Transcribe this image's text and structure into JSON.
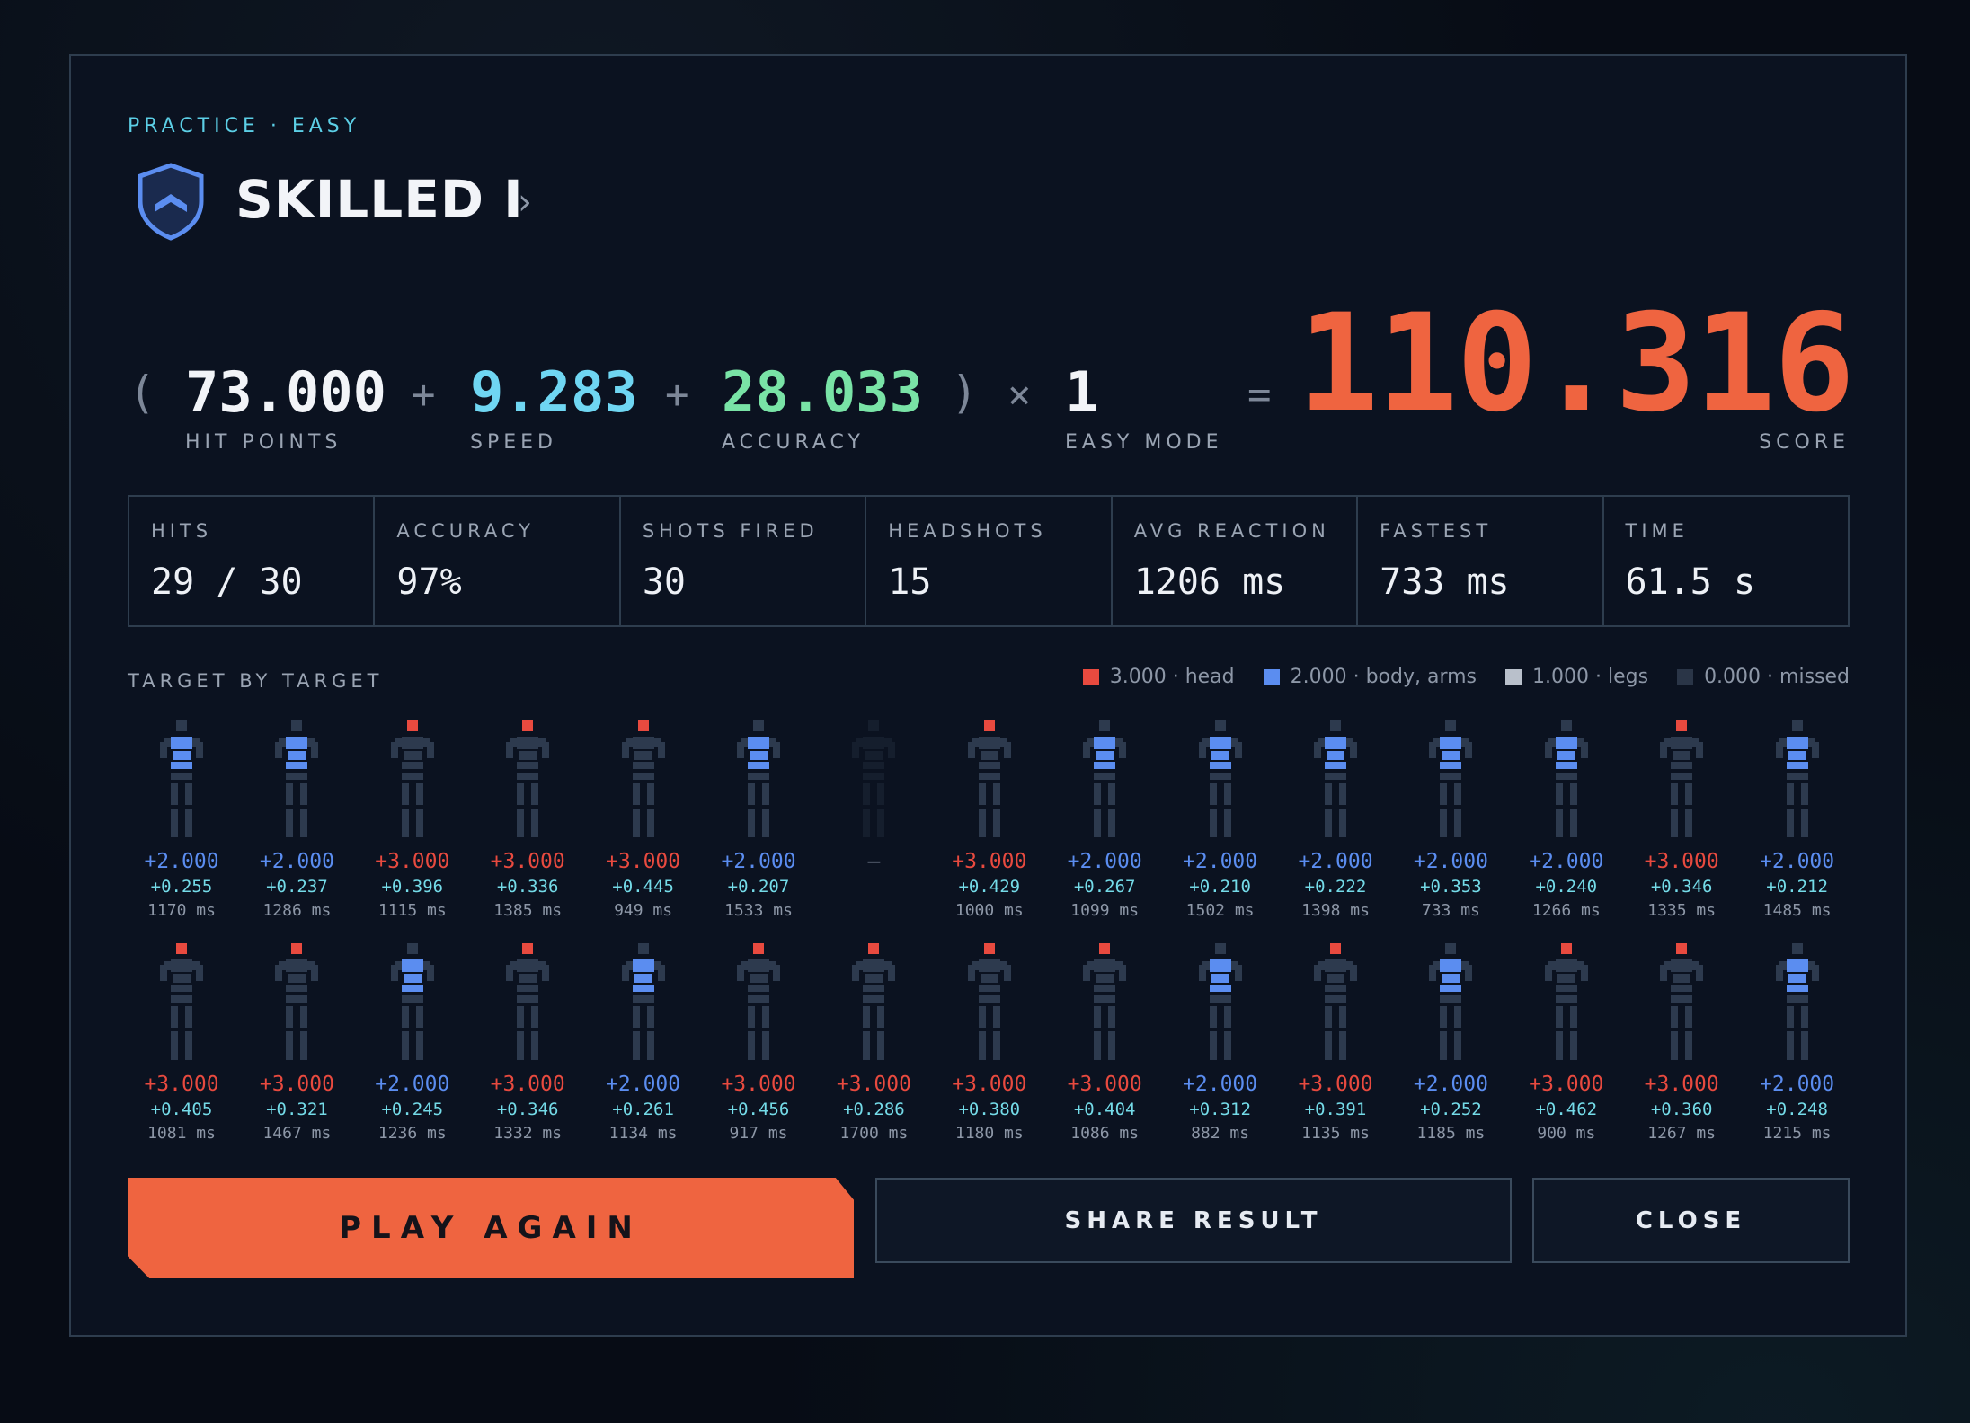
{
  "mode_label": "PRACTICE · EASY",
  "rank": {
    "name": "SKILLED I",
    "shield_icon": "shield-chevron-icon",
    "accent": "#5b8df0"
  },
  "formula": {
    "open_paren": "(",
    "close_paren": ")",
    "plus": "+",
    "times": "×",
    "equals": "=",
    "hit_points": {
      "value": "73.000",
      "label": "HIT POINTS",
      "color": "#f2f4f8"
    },
    "speed": {
      "value": "9.283",
      "label": "SPEED",
      "color": "#6fd6f2"
    },
    "accuracy": {
      "value": "28.033",
      "label": "ACCURACY",
      "color": "#79e3a6"
    },
    "multiplier": {
      "value": "1",
      "label": "EASY MODE"
    },
    "score": {
      "value": "110.316",
      "label": "SCORE"
    }
  },
  "stats": [
    {
      "label": "HITS",
      "value": "29 / 30"
    },
    {
      "label": "ACCURACY",
      "value": "97%"
    },
    {
      "label": "SHOTS FIRED",
      "value": "30"
    },
    {
      "label": "HEADSHOTS",
      "value": "15"
    },
    {
      "label": "AVG REACTION",
      "value": "1206 ms"
    },
    {
      "label": "FASTEST",
      "value": "733 ms"
    },
    {
      "label": "TIME",
      "value": "61.5 s"
    }
  ],
  "target_section": {
    "title": "TARGET BY TARGET",
    "legend": [
      {
        "label": "3.000 · head",
        "color": "#e84a3f"
      },
      {
        "label": "2.000 · body, arms",
        "color": "#5b8df0"
      },
      {
        "label": "1.000 · legs",
        "color": "#b9c0cb"
      },
      {
        "label": "0.000 · missed",
        "color": "#2a3547"
      }
    ],
    "colors": {
      "head": "#e84a3f",
      "body": "#5b8df0",
      "missed": "#7d8798"
    },
    "targets": [
      {
        "zone": "body",
        "pts": "+2.000",
        "spd": "+0.255",
        "ms": "1170 ms"
      },
      {
        "zone": "body",
        "pts": "+2.000",
        "spd": "+0.237",
        "ms": "1286 ms"
      },
      {
        "zone": "head",
        "pts": "+3.000",
        "spd": "+0.396",
        "ms": "1115 ms"
      },
      {
        "zone": "head",
        "pts": "+3.000",
        "spd": "+0.336",
        "ms": "1385 ms"
      },
      {
        "zone": "head",
        "pts": "+3.000",
        "spd": "+0.445",
        "ms": "949 ms"
      },
      {
        "zone": "body",
        "pts": "+2.000",
        "spd": "+0.207",
        "ms": "1533 ms"
      },
      {
        "zone": "missed",
        "pts": "–",
        "spd": "",
        "ms": ""
      },
      {
        "zone": "head",
        "pts": "+3.000",
        "spd": "+0.429",
        "ms": "1000 ms"
      },
      {
        "zone": "body",
        "pts": "+2.000",
        "spd": "+0.267",
        "ms": "1099 ms"
      },
      {
        "zone": "body",
        "pts": "+2.000",
        "spd": "+0.210",
        "ms": "1502 ms"
      },
      {
        "zone": "body",
        "pts": "+2.000",
        "spd": "+0.222",
        "ms": "1398 ms"
      },
      {
        "zone": "body",
        "pts": "+2.000",
        "spd": "+0.353",
        "ms": "733 ms"
      },
      {
        "zone": "body",
        "pts": "+2.000",
        "spd": "+0.240",
        "ms": "1266 ms"
      },
      {
        "zone": "head",
        "pts": "+3.000",
        "spd": "+0.346",
        "ms": "1335 ms"
      },
      {
        "zone": "body",
        "pts": "+2.000",
        "spd": "+0.212",
        "ms": "1485 ms"
      },
      {
        "zone": "head",
        "pts": "+3.000",
        "spd": "+0.405",
        "ms": "1081 ms"
      },
      {
        "zone": "head",
        "pts": "+3.000",
        "spd": "+0.321",
        "ms": "1467 ms"
      },
      {
        "zone": "body",
        "pts": "+2.000",
        "spd": "+0.245",
        "ms": "1236 ms"
      },
      {
        "zone": "head",
        "pts": "+3.000",
        "spd": "+0.346",
        "ms": "1332 ms"
      },
      {
        "zone": "body",
        "pts": "+2.000",
        "spd": "+0.261",
        "ms": "1134 ms"
      },
      {
        "zone": "head",
        "pts": "+3.000",
        "spd": "+0.456",
        "ms": "917 ms"
      },
      {
        "zone": "head",
        "pts": "+3.000",
        "spd": "+0.286",
        "ms": "1700 ms"
      },
      {
        "zone": "head",
        "pts": "+3.000",
        "spd": "+0.380",
        "ms": "1180 ms"
      },
      {
        "zone": "head",
        "pts": "+3.000",
        "spd": "+0.404",
        "ms": "1086 ms"
      },
      {
        "zone": "body",
        "pts": "+2.000",
        "spd": "+0.312",
        "ms": "882 ms"
      },
      {
        "zone": "head",
        "pts": "+3.000",
        "spd": "+0.391",
        "ms": "1135 ms"
      },
      {
        "zone": "body",
        "pts": "+2.000",
        "spd": "+0.252",
        "ms": "1185 ms"
      },
      {
        "zone": "head",
        "pts": "+3.000",
        "spd": "+0.462",
        "ms": "900 ms"
      },
      {
        "zone": "head",
        "pts": "+3.000",
        "spd": "+0.360",
        "ms": "1267 ms"
      },
      {
        "zone": "body",
        "pts": "+2.000",
        "spd": "+0.248",
        "ms": "1215 ms"
      }
    ]
  },
  "buttons": {
    "play_again": "PLAY AGAIN",
    "share": "SHARE RESULT",
    "close": "CLOSE",
    "play_color": "#ef6440"
  }
}
